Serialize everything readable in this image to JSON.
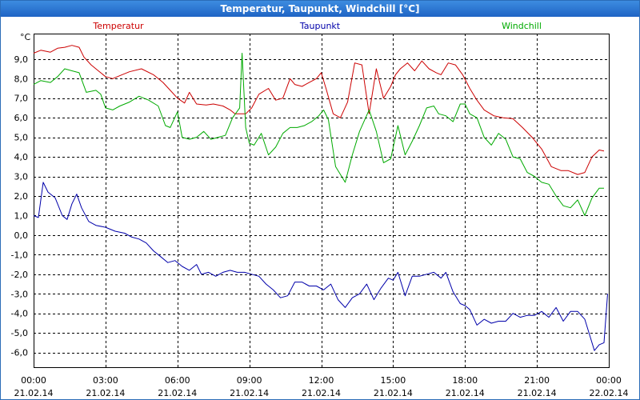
{
  "colors": {
    "temperatur": "#cc0000",
    "taupunkt": "#0000aa",
    "windchill": "#00aa00",
    "title_bar": "#1f64c4",
    "grid": "#000000",
    "axis_text": "#000000"
  },
  "chart_data": {
    "type": "line",
    "title": "Temperatur, Taupunkt, Windchill [°C]",
    "ylabel": "°C",
    "xlabel": "",
    "ylim": [
      -6.75,
      10.3
    ],
    "xlim": [
      0,
      24
    ],
    "y_ticks": [
      {
        "value": 9,
        "label": "9,0"
      },
      {
        "value": 8,
        "label": "8,0"
      },
      {
        "value": 7,
        "label": "7,0"
      },
      {
        "value": 6,
        "label": "6,0"
      },
      {
        "value": 5,
        "label": "5,0"
      },
      {
        "value": 4,
        "label": "4,0"
      },
      {
        "value": 3,
        "label": "3,0"
      },
      {
        "value": 2,
        "label": "2,0"
      },
      {
        "value": 1,
        "label": "1,0"
      },
      {
        "value": 0,
        "label": "0,0"
      },
      {
        "value": -1,
        "label": "-1,0"
      },
      {
        "value": -2,
        "label": "-2,0"
      },
      {
        "value": -3,
        "label": "-3,0"
      },
      {
        "value": -4,
        "label": "-4,0"
      },
      {
        "value": -5,
        "label": "-5,0"
      },
      {
        "value": -6,
        "label": "-6,0"
      }
    ],
    "x_ticks": [
      {
        "value": 0,
        "time": "00:00",
        "date": "21.02.14"
      },
      {
        "value": 3,
        "time": "03:00",
        "date": "21.02.14"
      },
      {
        "value": 6,
        "time": "06:00",
        "date": "21.02.14"
      },
      {
        "value": 9,
        "time": "09:00",
        "date": "21.02.14"
      },
      {
        "value": 12,
        "time": "12:00",
        "date": "21.02.14"
      },
      {
        "value": 15,
        "time": "15:00",
        "date": "21.02.14"
      },
      {
        "value": 18,
        "time": "18:00",
        "date": "21.02.14"
      },
      {
        "value": 21,
        "time": "21:00",
        "date": "21.02.14"
      },
      {
        "value": 24,
        "time": "00:00",
        "date": "22.02.14"
      }
    ],
    "series": [
      {
        "name": "Temperatur",
        "key": "temperatur",
        "x": [
          0,
          0.3,
          0.7,
          1,
          1.3,
          1.6,
          1.9,
          2.1,
          2.4,
          2.7,
          3,
          3.3,
          3.6,
          4,
          4.5,
          5,
          5.4,
          5.7,
          6,
          6.3,
          6.5,
          6.8,
          7.2,
          7.5,
          7.9,
          8.2,
          8.4,
          8.7,
          8.85,
          9.1,
          9.4,
          9.8,
          10.1,
          10.4,
          10.7,
          10.9,
          11.2,
          11.5,
          11.8,
          12,
          12.2,
          12.5,
          12.8,
          13.1,
          13.4,
          13.7,
          14,
          14.3,
          14.6,
          14.9,
          15.1,
          15.3,
          15.6,
          15.9,
          16.2,
          16.5,
          16.8,
          17,
          17.3,
          17.6,
          17.9,
          18.2,
          18.5,
          18.8,
          19.2,
          19.6,
          20,
          20.4,
          20.8,
          21.2,
          21.6,
          22,
          22.3,
          22.7,
          23,
          23.3,
          23.6,
          23.8
        ],
        "y": [
          9.3,
          9.45,
          9.35,
          9.55,
          9.6,
          9.7,
          9.6,
          9.1,
          8.7,
          8.4,
          8.1,
          8.0,
          8.15,
          8.35,
          8.5,
          8.2,
          7.8,
          7.4,
          7.0,
          6.75,
          7.3,
          6.7,
          6.65,
          6.7,
          6.6,
          6.4,
          6.2,
          6.2,
          6.2,
          6.5,
          7.2,
          7.5,
          6.9,
          7.0,
          8.0,
          7.7,
          7.6,
          7.8,
          8.0,
          8.3,
          7.5,
          6.2,
          6.0,
          6.8,
          8.8,
          8.7,
          6.2,
          8.5,
          7.0,
          7.6,
          8.2,
          8.5,
          8.8,
          8.4,
          8.9,
          8.5,
          8.3,
          8.2,
          8.8,
          8.7,
          8.2,
          7.5,
          6.9,
          6.4,
          6.1,
          6.0,
          5.95,
          5.5,
          5.0,
          4.4,
          3.5,
          3.3,
          3.3,
          3.1,
          3.2,
          4.0,
          4.35,
          4.3
        ]
      },
      {
        "name": "Windchill",
        "key": "windchill",
        "x": [
          0,
          0.3,
          0.7,
          1,
          1.3,
          1.6,
          1.9,
          2.2,
          2.6,
          2.8,
          3,
          3.3,
          3.6,
          4,
          4.4,
          4.8,
          5.2,
          5.5,
          5.7,
          6,
          6.2,
          6.5,
          6.8,
          7.1,
          7.4,
          7.7,
          8,
          8.3,
          8.6,
          8.7,
          8.85,
          9,
          9.2,
          9.5,
          9.8,
          10.1,
          10.4,
          10.7,
          11,
          11.3,
          11.6,
          11.9,
          12.1,
          12.3,
          12.6,
          13,
          13.3,
          13.6,
          14,
          14.3,
          14.6,
          14.9,
          15.2,
          15.5,
          15.8,
          16.1,
          16.4,
          16.7,
          16.9,
          17.2,
          17.5,
          17.8,
          18,
          18.2,
          18.5,
          18.8,
          19.1,
          19.4,
          19.7,
          20,
          20.3,
          20.6,
          20.9,
          21.2,
          21.5,
          21.8,
          22.1,
          22.4,
          22.7,
          23,
          23.3,
          23.6,
          23.8
        ],
        "y": [
          7.7,
          7.9,
          7.8,
          8.1,
          8.5,
          8.4,
          8.3,
          7.3,
          7.4,
          7.2,
          6.5,
          6.4,
          6.6,
          6.8,
          7.1,
          6.9,
          6.6,
          5.6,
          5.5,
          6.3,
          5.0,
          4.9,
          5.0,
          5.3,
          4.9,
          5.0,
          5.1,
          6.0,
          6.5,
          9.3,
          5.5,
          4.7,
          4.6,
          5.2,
          4.1,
          4.5,
          5.2,
          5.5,
          5.5,
          5.6,
          5.8,
          6.1,
          6.4,
          5.9,
          3.5,
          2.7,
          4.1,
          5.3,
          6.4,
          5.3,
          3.7,
          3.9,
          5.6,
          4.1,
          4.8,
          5.6,
          6.5,
          6.6,
          6.2,
          6.1,
          5.8,
          6.7,
          6.7,
          6.2,
          6.0,
          5.0,
          4.6,
          5.2,
          4.9,
          4.0,
          3.9,
          3.2,
          3.0,
          2.7,
          2.6,
          2.0,
          1.5,
          1.4,
          1.8,
          1.0,
          1.9,
          2.4,
          2.4
        ]
      },
      {
        "name": "Taupunkt",
        "key": "taupunkt",
        "x": [
          0,
          0.2,
          0.4,
          0.6,
          0.9,
          1.2,
          1.4,
          1.6,
          1.8,
          2,
          2.3,
          2.6,
          3,
          3.4,
          3.8,
          4.1,
          4.4,
          4.7,
          5,
          5.3,
          5.6,
          5.9,
          6.2,
          6.5,
          6.8,
          7,
          7.3,
          7.6,
          7.9,
          8.2,
          8.5,
          8.8,
          9.1,
          9.4,
          9.7,
          10,
          10.3,
          10.6,
          10.9,
          11.2,
          11.5,
          11.8,
          12.1,
          12.4,
          12.7,
          13,
          13.3,
          13.6,
          13.9,
          14.2,
          14.5,
          14.8,
          15,
          15.2,
          15.5,
          15.8,
          16.1,
          16.4,
          16.7,
          17,
          17.2,
          17.5,
          17.8,
          18,
          18.2,
          18.5,
          18.8,
          19.1,
          19.4,
          19.7,
          20,
          20.3,
          20.6,
          20.9,
          21.2,
          21.5,
          21.8,
          22.1,
          22.4,
          22.7,
          23,
          23.2,
          23.4,
          23.6,
          23.8,
          23.95
        ],
        "y": [
          1.0,
          0.9,
          2.7,
          2.2,
          1.9,
          1.0,
          0.8,
          1.6,
          2.1,
          1.4,
          0.7,
          0.5,
          0.4,
          0.2,
          0.1,
          -0.1,
          -0.2,
          -0.4,
          -0.8,
          -1.1,
          -1.4,
          -1.3,
          -1.6,
          -1.8,
          -1.5,
          -2.0,
          -1.9,
          -2.1,
          -1.9,
          -1.8,
          -1.9,
          -1.9,
          -2.0,
          -2.1,
          -2.5,
          -2.8,
          -3.2,
          -3.1,
          -2.4,
          -2.4,
          -2.6,
          -2.6,
          -2.8,
          -2.5,
          -3.3,
          -3.7,
          -3.2,
          -3.0,
          -2.5,
          -3.3,
          -2.7,
          -2.2,
          -2.3,
          -1.9,
          -3.1,
          -2.1,
          -2.1,
          -2.0,
          -1.9,
          -2.2,
          -1.9,
          -2.9,
          -3.5,
          -3.6,
          -3.8,
          -4.6,
          -4.3,
          -4.5,
          -4.4,
          -4.4,
          -4.0,
          -4.2,
          -4.1,
          -4.1,
          -3.9,
          -4.2,
          -3.7,
          -4.4,
          -3.9,
          -3.9,
          -4.3,
          -5.1,
          -5.9,
          -5.6,
          -5.5,
          -3.0
        ]
      }
    ]
  }
}
